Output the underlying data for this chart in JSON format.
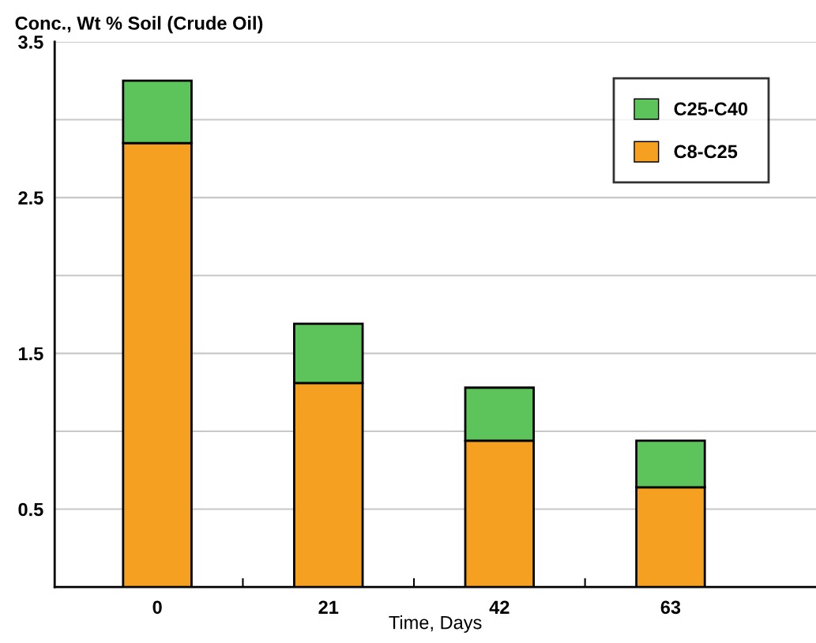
{
  "chart_data": {
    "type": "bar",
    "stacked": true,
    "ylabel": "Conc., Wt % Soil (Crude Oil)",
    "xlabel": "Time, Days",
    "categories": [
      "0",
      "21",
      "42",
      "63"
    ],
    "series": [
      {
        "name": "C8-C25",
        "color": "#f5a020",
        "values": [
          2.85,
          1.31,
          0.94,
          0.64
        ]
      },
      {
        "name": "C25-C40",
        "color": "#5cc45a",
        "values": [
          0.4,
          0.38,
          0.34,
          0.3
        ]
      }
    ],
    "ylim": [
      0,
      3.5
    ],
    "yticks": [
      0.5,
      {
        "value": 1.0,
        "label": null
      },
      1.5,
      {
        "value": 2.0,
        "label": null
      },
      2.5,
      {
        "value": 3.0,
        "label": null
      },
      3.5
    ],
    "grid": "y",
    "legend": "top right"
  }
}
